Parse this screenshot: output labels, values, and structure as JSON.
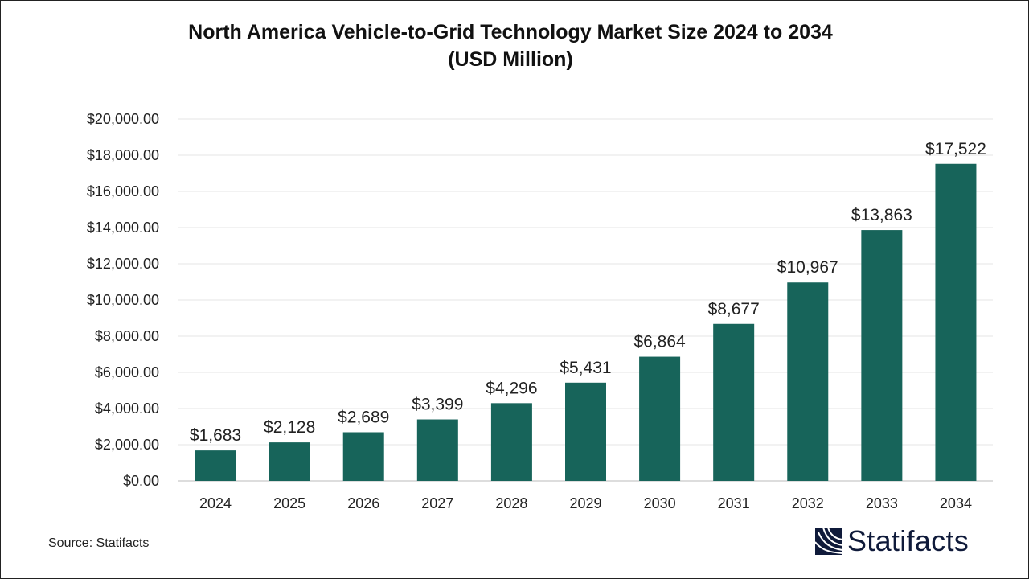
{
  "chart_data": {
    "type": "bar",
    "title": "North America Vehicle-to-Grid Technology Market Size 2024 to 2034",
    "subtitle": "(USD Million)",
    "xlabel": "",
    "ylabel": "",
    "categories": [
      "2024",
      "2025",
      "2026",
      "2027",
      "2028",
      "2029",
      "2030",
      "2031",
      "2032",
      "2033",
      "2034"
    ],
    "values": [
      1683,
      2128,
      2689,
      3399,
      4296,
      5431,
      6864,
      8677,
      10967,
      13863,
      17522
    ],
    "data_labels": [
      "$1,683",
      "$2,128",
      "$2,689",
      "$3,399",
      "$4,296",
      "$5,431",
      "$6,864",
      "$8,677",
      "$10,967",
      "$13,863",
      "$17,522"
    ],
    "ylim": [
      0,
      20000
    ],
    "yticks": [
      0,
      2000,
      4000,
      6000,
      8000,
      10000,
      12000,
      14000,
      16000,
      18000,
      20000
    ],
    "ytick_labels": [
      "$0.00",
      "$2,000.00",
      "$4,000.00",
      "$6,000.00",
      "$8,000.00",
      "$10,000.00",
      "$12,000.00",
      "$14,000.00",
      "$16,000.00",
      "$18,000.00",
      "$20,000.00"
    ],
    "grid": true,
    "legend": "none",
    "bar_color": "#17645a"
  },
  "source": "Source: Statifacts",
  "logo": {
    "text": "Statifacts",
    "color": "#0f1a3a"
  }
}
